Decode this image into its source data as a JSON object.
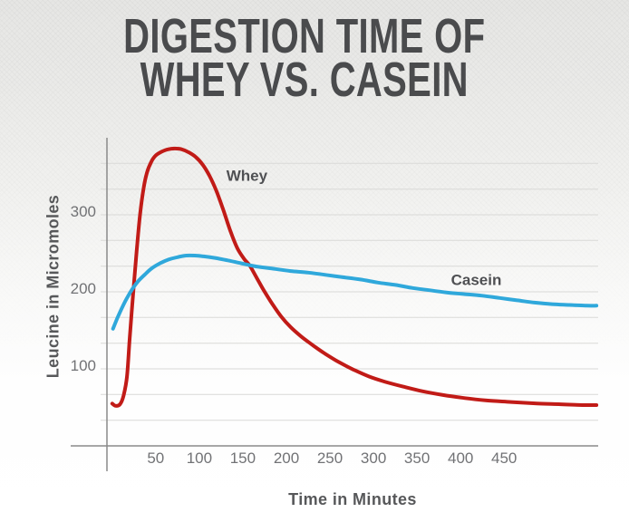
{
  "title": {
    "line1": "DIGESTION TIME OF",
    "line2": "WHEY VS. CASEIN"
  },
  "colors": {
    "whey_red": "#c11b17",
    "casein_blue": "#2fa8db",
    "title_text": "#4a4b4d",
    "axis_line": "#8a8a8a",
    "gridline": "#d9d9d7",
    "tick_label": "#717275",
    "axis_title": "#57585a",
    "series_label": "#4f5053",
    "background_top": "#e6e6e4",
    "background_bottom": "#ffffff"
  },
  "chart_data": {
    "type": "line",
    "title": "Digestion Time of Whey vs. Casein",
    "xlabel": "Time in Minutes",
    "ylabel": "Leucine in Micromoles",
    "xlim": [
      -6,
      558
    ],
    "ylim": [
      0,
      400
    ],
    "x_ticks": [
      50,
      100,
      150,
      200,
      250,
      300,
      350,
      400,
      450
    ],
    "y_ticks": [
      100,
      200,
      300
    ],
    "y_grid_step": 33.333,
    "grid": true,
    "legend_position": "inline-labels",
    "series": [
      {
        "name": "Whey",
        "color": "#c11b17",
        "label": {
          "text": "Whey",
          "x": 131,
          "y": 344
        },
        "points": [
          [
            0,
            55
          ],
          [
            4,
            52
          ],
          [
            9,
            54
          ],
          [
            13,
            65
          ],
          [
            17,
            90
          ],
          [
            20,
            138
          ],
          [
            24,
            196
          ],
          [
            28,
            252
          ],
          [
            32,
            300
          ],
          [
            36,
            334
          ],
          [
            40,
            355
          ],
          [
            45,
            369
          ],
          [
            50,
            377
          ],
          [
            57,
            382
          ],
          [
            64,
            385
          ],
          [
            72,
            386
          ],
          [
            80,
            385
          ],
          [
            88,
            381
          ],
          [
            96,
            375
          ],
          [
            104,
            365
          ],
          [
            112,
            350
          ],
          [
            120,
            330
          ],
          [
            128,
            305
          ],
          [
            136,
            278
          ],
          [
            144,
            256
          ],
          [
            152,
            242
          ],
          [
            158,
            234
          ],
          [
            166,
            218
          ],
          [
            174,
            202
          ],
          [
            184,
            184
          ],
          [
            194,
            168
          ],
          [
            205,
            154
          ],
          [
            217,
            142
          ],
          [
            230,
            131
          ],
          [
            244,
            120
          ],
          [
            260,
            109
          ],
          [
            277,
            99
          ],
          [
            295,
            90
          ],
          [
            314,
            83
          ],
          [
            334,
            77
          ],
          [
            356,
            71
          ],
          [
            380,
            66
          ],
          [
            405,
            62
          ],
          [
            430,
            59
          ],
          [
            458,
            57
          ],
          [
            488,
            55
          ],
          [
            515,
            54
          ],
          [
            540,
            53
          ],
          [
            556,
            53
          ]
        ]
      },
      {
        "name": "Casein",
        "color": "#2fa8db",
        "label": {
          "text": "Casein",
          "x": 389,
          "y": 209
        },
        "points": [
          [
            1,
            152
          ],
          [
            6,
            166
          ],
          [
            12,
            181
          ],
          [
            18,
            194
          ],
          [
            24,
            205
          ],
          [
            30,
            214
          ],
          [
            38,
            223
          ],
          [
            46,
            231
          ],
          [
            55,
            237
          ],
          [
            65,
            242
          ],
          [
            75,
            245
          ],
          [
            85,
            247
          ],
          [
            95,
            247
          ],
          [
            105,
            246
          ],
          [
            118,
            244
          ],
          [
            132,
            241
          ],
          [
            148,
            237
          ],
          [
            165,
            233
          ],
          [
            185,
            230
          ],
          [
            205,
            227
          ],
          [
            225,
            225
          ],
          [
            245,
            222
          ],
          [
            265,
            219
          ],
          [
            285,
            216
          ],
          [
            305,
            212
          ],
          [
            325,
            209
          ],
          [
            345,
            205
          ],
          [
            365,
            202
          ],
          [
            385,
            199
          ],
          [
            405,
            197
          ],
          [
            425,
            195
          ],
          [
            445,
            192
          ],
          [
            465,
            189
          ],
          [
            485,
            186
          ],
          [
            505,
            184
          ],
          [
            525,
            183
          ],
          [
            545,
            182
          ],
          [
            556,
            182
          ]
        ]
      }
    ]
  }
}
